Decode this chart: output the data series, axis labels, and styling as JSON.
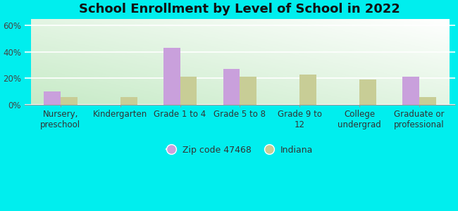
{
  "title": "School Enrollment by Level of School in 2022",
  "categories": [
    "Nursery,\npreschool",
    "Kindergarten",
    "Grade 1 to 4",
    "Grade 5 to 8",
    "Grade 9 to\n12",
    "College\nundergrad",
    "Graduate or\nprofessional"
  ],
  "zip_values": [
    10,
    0,
    43,
    27,
    0,
    0,
    21
  ],
  "indiana_values": [
    6,
    6,
    21,
    21,
    23,
    19,
    6
  ],
  "zip_color": "#c9a0dc",
  "indiana_color": "#c8cd96",
  "zip_label": "Zip code 47468",
  "indiana_label": "Indiana",
  "ylim": [
    0,
    65
  ],
  "yticks": [
    0,
    20,
    40,
    60
  ],
  "ytick_labels": [
    "0%",
    "20%",
    "40%",
    "60%"
  ],
  "background_color": "#00EEEE",
  "title_fontsize": 13,
  "axis_fontsize": 8.5,
  "legend_fontsize": 9,
  "bar_width": 0.28
}
